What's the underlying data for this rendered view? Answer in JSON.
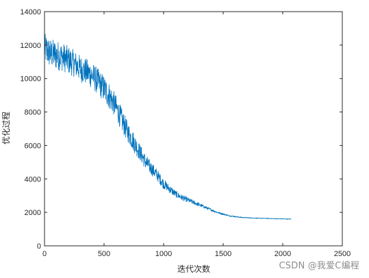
{
  "chart_data": {
    "type": "line",
    "title": "",
    "xlabel": "迭代次数",
    "ylabel": "优化过程",
    "xlim": [
      0,
      2500
    ],
    "ylim": [
      0,
      14000
    ],
    "xticks": [
      0,
      500,
      1000,
      1500,
      2000,
      2500
    ],
    "yticks": [
      0,
      2000,
      4000,
      6000,
      8000,
      10000,
      12000,
      14000
    ],
    "grid": false,
    "legend": "none",
    "series": [
      {
        "color": "#0072BD",
        "noise_note_in_units": "iteration-to-iteration fluctuation",
        "x": [
          0,
          50,
          100,
          150,
          200,
          250,
          300,
          350,
          400,
          450,
          500,
          550,
          600,
          650,
          700,
          750,
          800,
          850,
          900,
          950,
          1000,
          1050,
          1100,
          1150,
          1200,
          1250,
          1300,
          1350,
          1400,
          1450,
          1500,
          1550,
          1600,
          1650,
          1700,
          1750,
          1800,
          1850,
          1900,
          1950,
          2000,
          2050,
          2070
        ],
        "y": [
          11800,
          11500,
          11400,
          11300,
          11100,
          10900,
          10600,
          10400,
          10200,
          9800,
          9400,
          8900,
          8300,
          7500,
          6800,
          6200,
          5600,
          5000,
          4600,
          4200,
          3700,
          3400,
          3100,
          2900,
          2750,
          2600,
          2450,
          2300,
          2150,
          2000,
          1900,
          1800,
          1750,
          1700,
          1680,
          1660,
          1650,
          1640,
          1630,
          1620,
          1610,
          1600,
          1600
        ],
        "amplitude": [
          900,
          900,
          900,
          850,
          850,
          800,
          800,
          800,
          800,
          800,
          800,
          800,
          700,
          700,
          600,
          600,
          500,
          450,
          400,
          350,
          300,
          250,
          200,
          180,
          150,
          130,
          110,
          90,
          70,
          60,
          50,
          40,
          35,
          30,
          25,
          25,
          20,
          20,
          20,
          20,
          20,
          20,
          20
        ]
      }
    ]
  },
  "watermark": "CSDN @我爱C编程"
}
